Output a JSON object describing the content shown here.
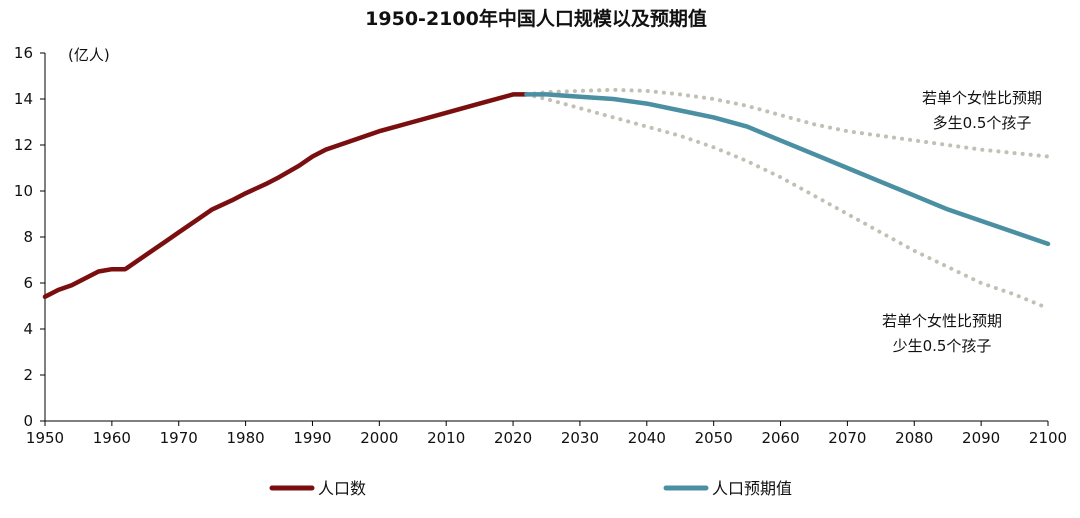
{
  "chart_data": {
    "type": "line",
    "title": "1950-2100年中国人口规模以及预期值",
    "ylabel": "(亿人)",
    "xlabel": "",
    "xlim": [
      1950,
      2100
    ],
    "ylim": [
      0,
      16
    ],
    "x_ticks": [
      "1950",
      "1960",
      "1970",
      "1980",
      "1990",
      "2000",
      "2010",
      "2020",
      "2030",
      "2040",
      "2050",
      "2060",
      "2070",
      "2080",
      "2090",
      "2100"
    ],
    "y_ticks": [
      "0",
      "2",
      "4",
      "6",
      "8",
      "10",
      "12",
      "14",
      "16"
    ],
    "grid": false,
    "legend_position": "bottom",
    "series": [
      {
        "name": "人口数",
        "color": "#7b0f0f",
        "style": "solid",
        "x": [
          1950,
          1952,
          1954,
          1956,
          1958,
          1960,
          1962,
          1963,
          1965,
          1968,
          1970,
          1973,
          1975,
          1978,
          1980,
          1983,
          1985,
          1988,
          1990,
          1992,
          1995,
          2000,
          2005,
          2010,
          2015,
          2020,
          2022
        ],
        "y": [
          5.4,
          5.7,
          5.9,
          6.2,
          6.5,
          6.6,
          6.6,
          6.8,
          7.2,
          7.8,
          8.2,
          8.8,
          9.2,
          9.6,
          9.9,
          10.3,
          10.6,
          11.1,
          11.5,
          11.8,
          12.1,
          12.6,
          13.0,
          13.4,
          13.8,
          14.2,
          14.2
        ]
      },
      {
        "name": "人口预期值",
        "color": "#4b8fa3",
        "style": "solid",
        "x": [
          2022,
          2025,
          2030,
          2035,
          2040,
          2045,
          2050,
          2055,
          2060,
          2065,
          2070,
          2075,
          2080,
          2085,
          2090,
          2095,
          2100
        ],
        "y": [
          14.2,
          14.2,
          14.1,
          14.0,
          13.8,
          13.5,
          13.2,
          12.8,
          12.2,
          11.6,
          11.0,
          10.4,
          9.8,
          9.2,
          8.7,
          8.2,
          7.7
        ]
      },
      {
        "color": "#c2c0b4",
        "style": "dotted",
        "x": [
          2022,
          2025,
          2030,
          2035,
          2040,
          2045,
          2050,
          2055,
          2060,
          2065,
          2070,
          2075,
          2080,
          2085,
          2090,
          2095,
          2100
        ],
        "y": [
          14.2,
          14.3,
          14.35,
          14.4,
          14.35,
          14.2,
          14.0,
          13.7,
          13.3,
          12.9,
          12.6,
          12.4,
          12.2,
          12.0,
          11.8,
          11.65,
          11.5
        ]
      },
      {
        "color": "#c2c0b4",
        "style": "dotted",
        "x": [
          2022,
          2025,
          2030,
          2035,
          2040,
          2045,
          2050,
          2055,
          2060,
          2065,
          2070,
          2075,
          2080,
          2085,
          2090,
          2095,
          2100
        ],
        "y": [
          14.2,
          14.0,
          13.6,
          13.2,
          12.8,
          12.4,
          11.9,
          11.3,
          10.6,
          9.8,
          9.0,
          8.2,
          7.4,
          6.7,
          6.0,
          5.5,
          4.9
        ]
      }
    ],
    "annotations": {
      "high": [
        "若单个女性比预期",
        "多生0.5个孩子"
      ],
      "low": [
        "若单个女性比预期",
        "少生0.5个孩子"
      ]
    }
  }
}
